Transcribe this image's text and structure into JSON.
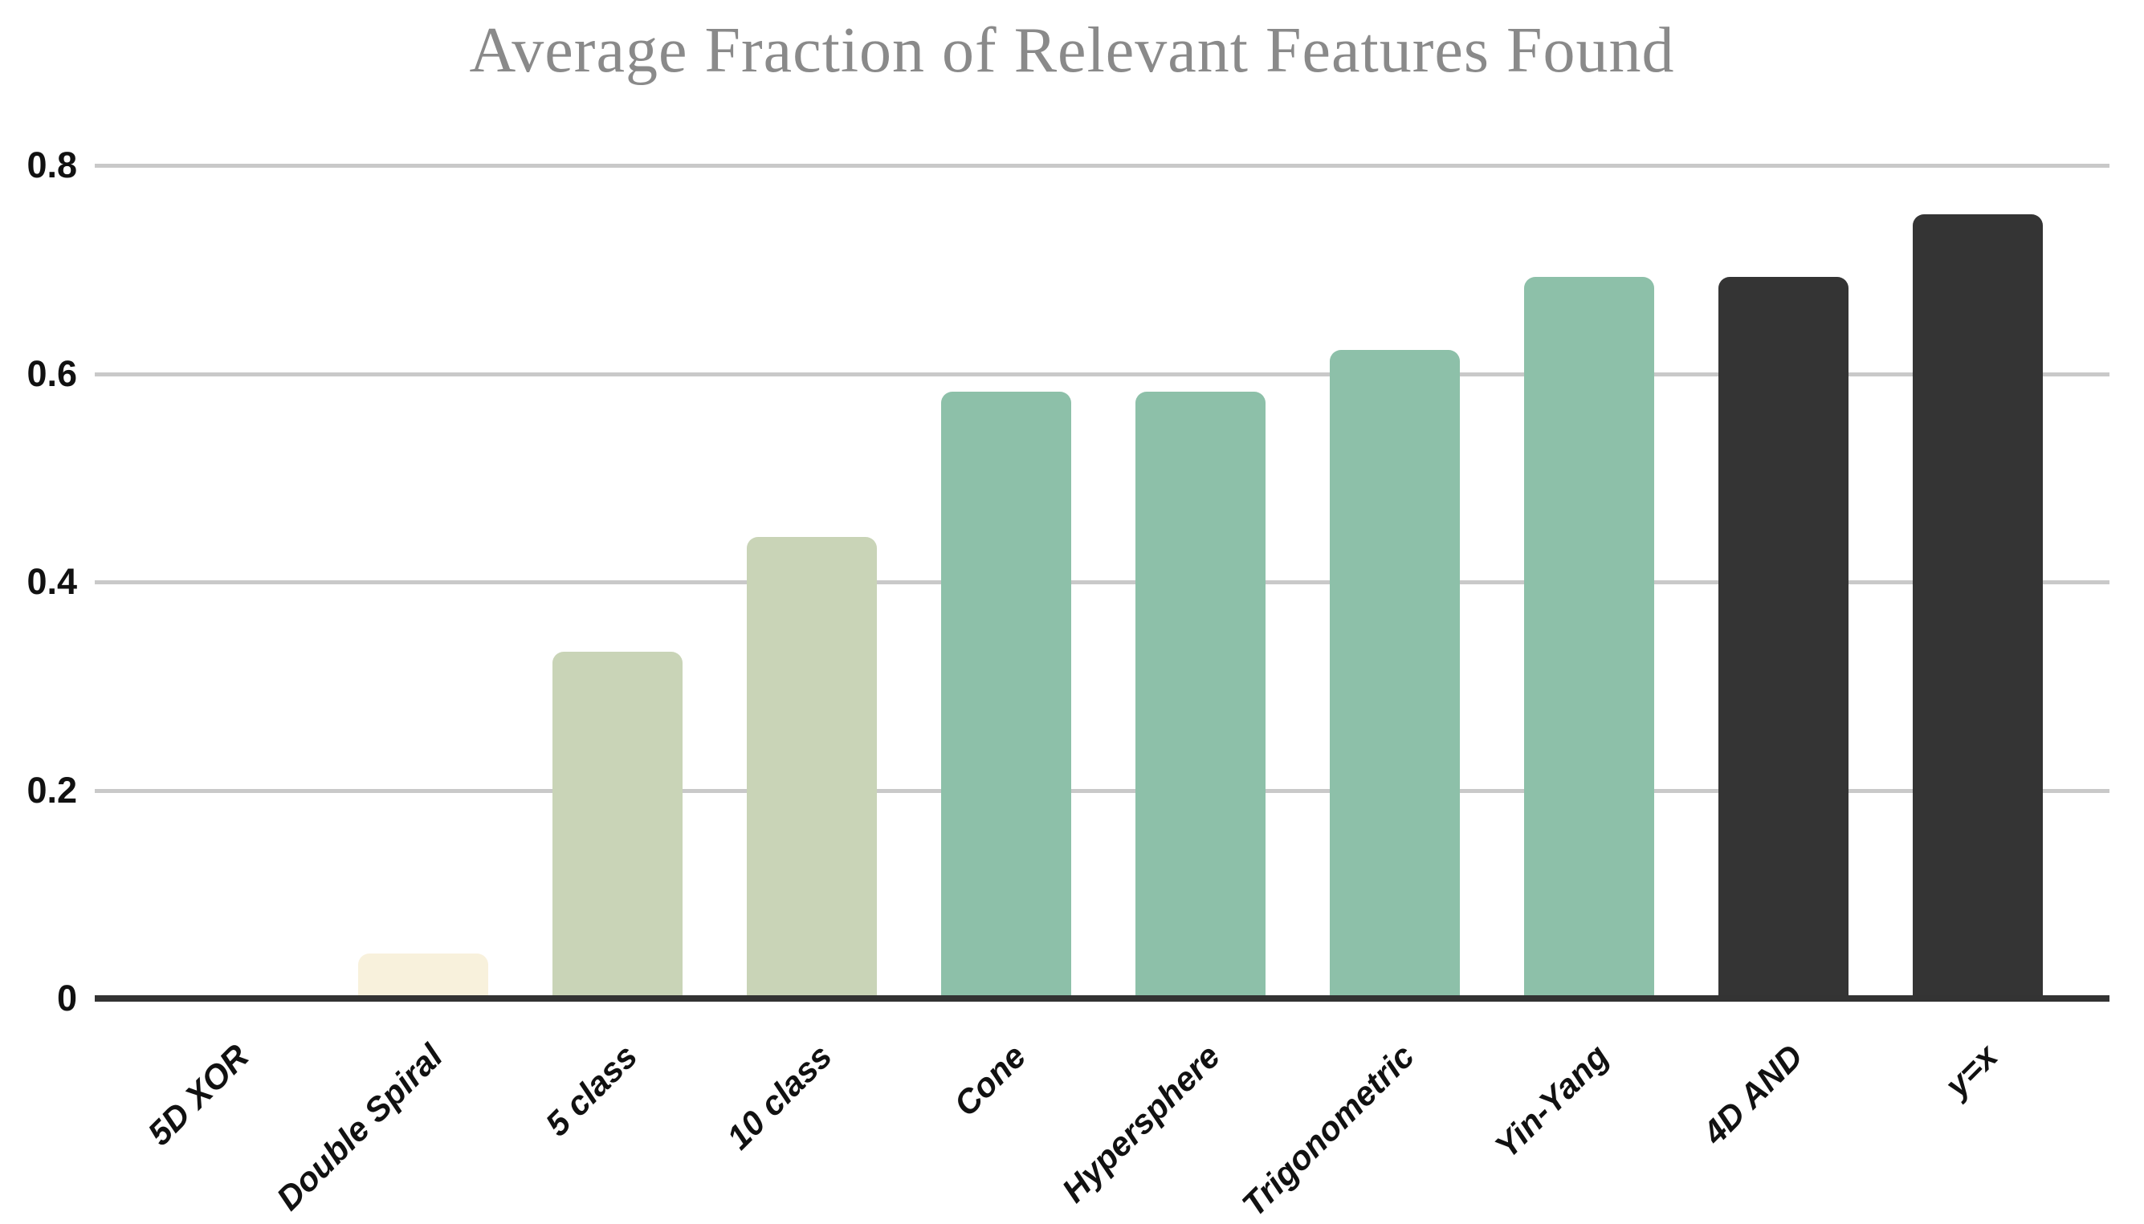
{
  "chart_data": {
    "type": "bar",
    "title": "Average Fraction of Relevant Features Found",
    "categories": [
      "5D XOR",
      "Double Spiral",
      "5 class",
      "10 class",
      "Cone",
      "Hypersphere",
      "Trigonometric",
      "Yin-Yang",
      "4D AND",
      "y=x"
    ],
    "values": [
      0,
      0.04,
      0.33,
      0.44,
      0.58,
      0.58,
      0.62,
      0.69,
      0.69,
      0.75
    ],
    "bar_colors": [
      "#343434",
      "#f8f1dc",
      "#c9d4b7",
      "#c9d4b7",
      "#8dc0a9",
      "#8dc0a9",
      "#8dc0a9",
      "#8dc0a9",
      "#343434",
      "#343434"
    ],
    "xlabel": "",
    "ylabel": "",
    "ylim": [
      0,
      0.8
    ],
    "ytick_values": [
      0,
      0.2,
      0.4,
      0.6,
      0.8
    ],
    "ytick_labels": [
      "0",
      "0.2",
      "0.4",
      "0.6",
      "0.8"
    ],
    "grid": true,
    "legend": "none",
    "colors": {
      "title_text": "#8a8a8a",
      "tick_text": "#111111",
      "gridline": "#c9c9c9",
      "axis_line": "#333333",
      "background": "#ffffff"
    }
  }
}
